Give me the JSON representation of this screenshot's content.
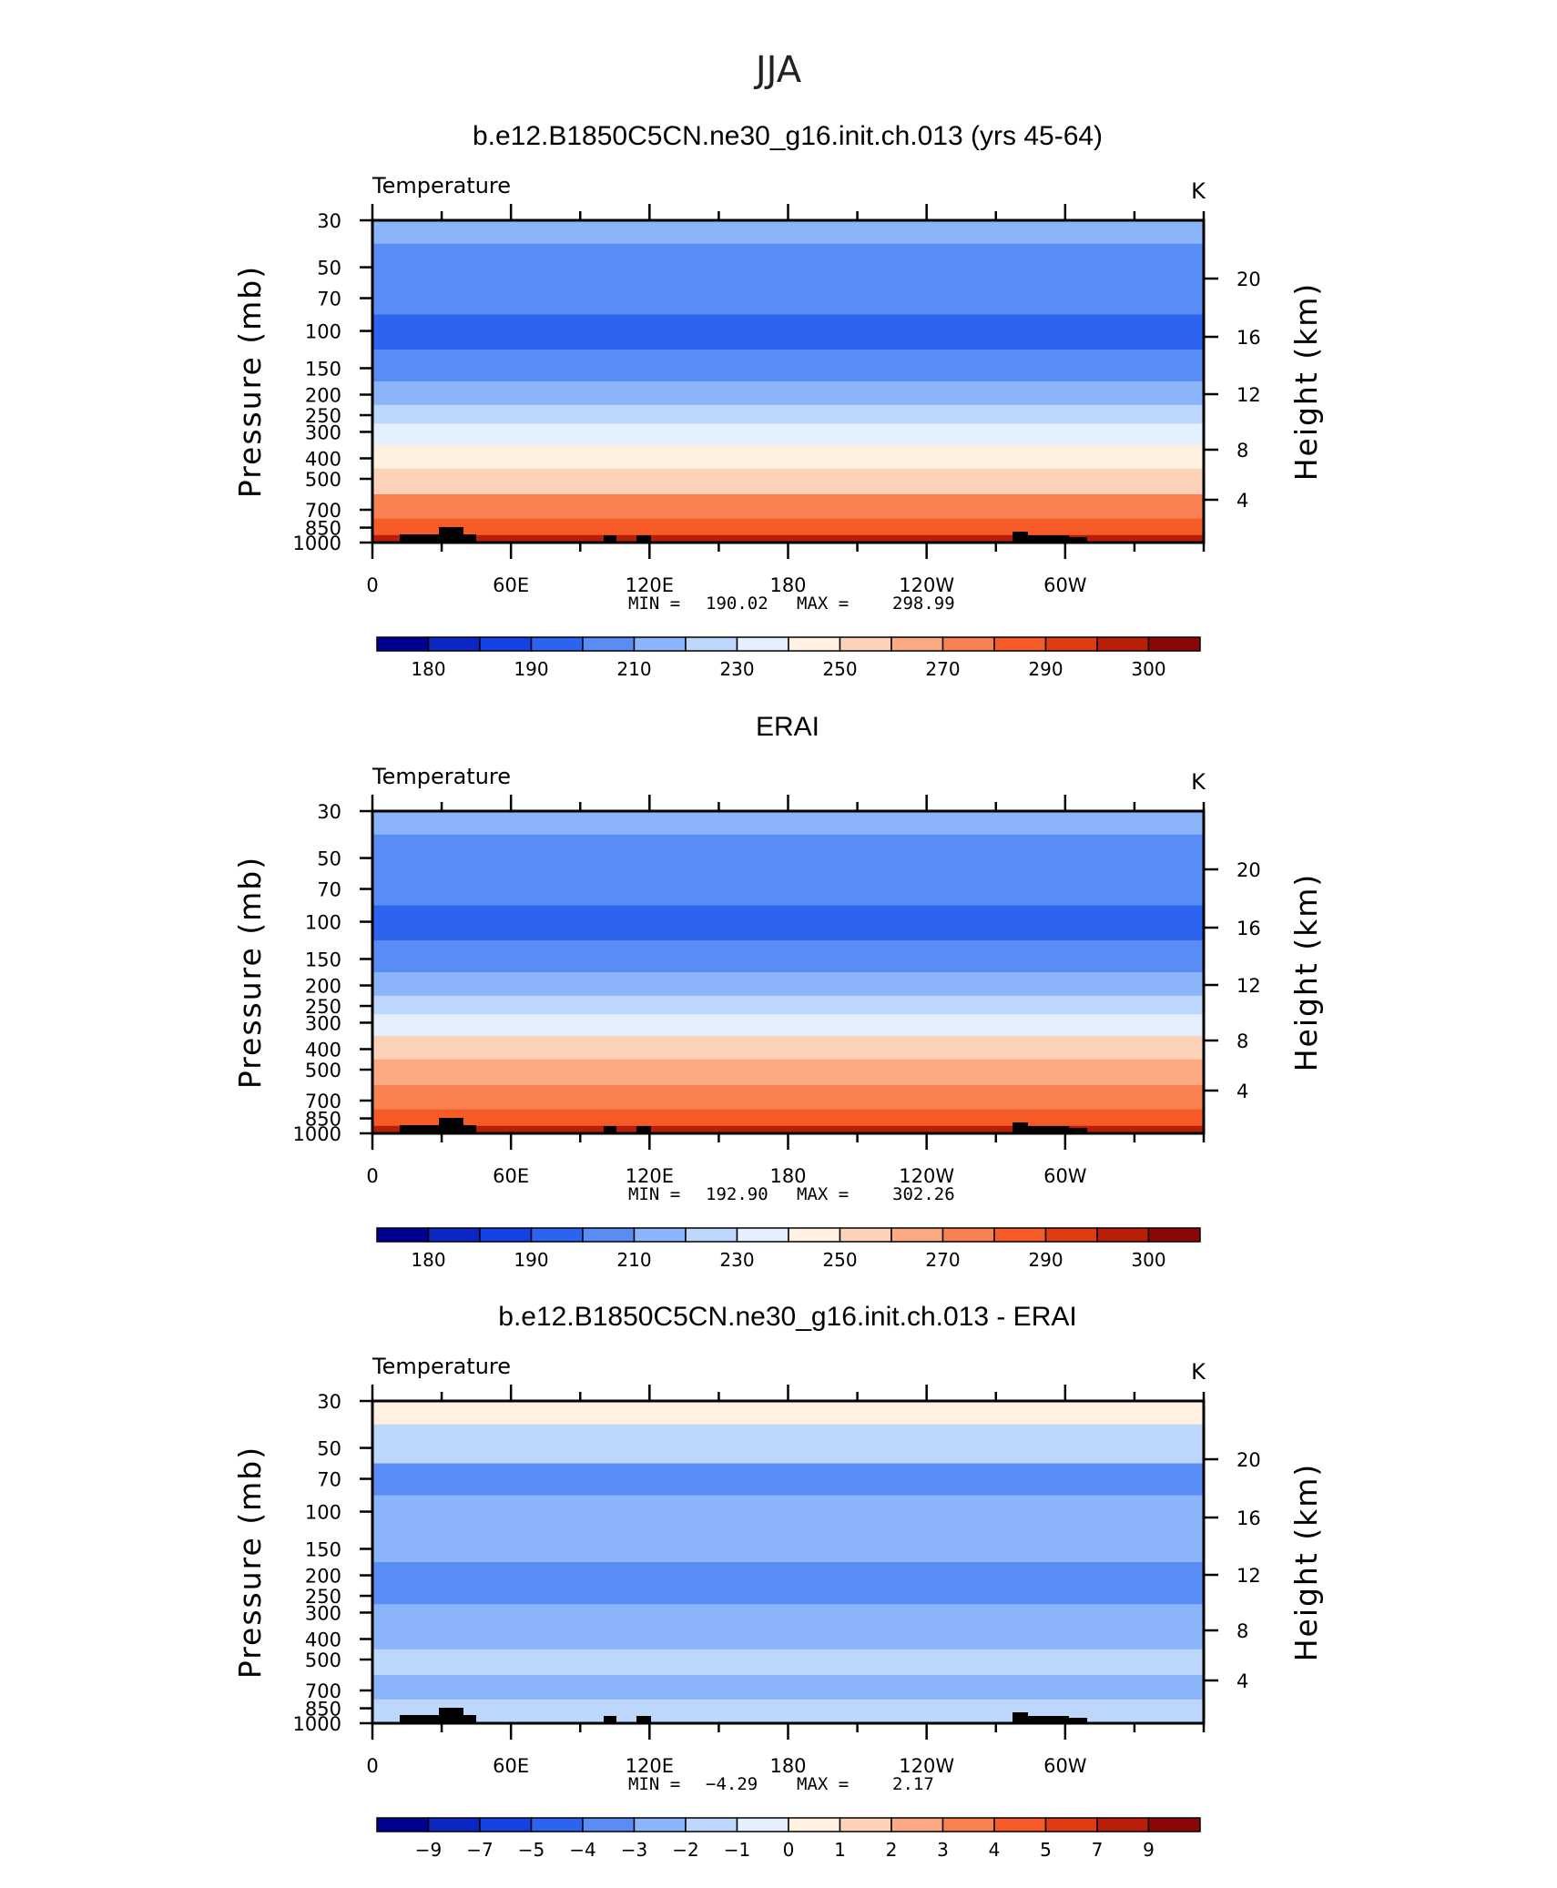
{
  "page_title": "JJA",
  "chart_data": [
    {
      "type": "heatmap",
      "title": "b.e12.B1850C5CN.ne30_g16.init.ch.013 (yrs 45-64)",
      "left_label": "Temperature",
      "right_label": "K",
      "ylabel": "Pressure (mb)",
      "ylabel_right": "Height (km)",
      "x_ticks": [
        "0",
        "60E",
        "120E",
        "180",
        "120W",
        "60W"
      ],
      "y_ticks": [
        "30",
        "50",
        "70",
        "100",
        "150",
        "200",
        "250",
        "300",
        "400",
        "500",
        "700",
        "850",
        "1000"
      ],
      "y_ticks_right": [
        "20",
        "16",
        "12",
        "8",
        "4"
      ],
      "min_label": "MIN =",
      "min_value": "190.02",
      "max_label": "MAX =",
      "max_value": "298.99",
      "colorbar_labels": [
        "180",
        "190",
        "210",
        "230",
        "250",
        "270",
        "290",
        "300"
      ],
      "colorbar_colors": [
        "#000090",
        "#0a27c4",
        "#1442e4",
        "#2c64f0",
        "#5a8cf5",
        "#8cb4fa",
        "#bcd6fc",
        "#e4f0fe",
        "#fff0e2",
        "#fdd2b8",
        "#fbaa84",
        "#f98050",
        "#f65a26",
        "#e03c12",
        "#b81e08",
        "#8c0808"
      ],
      "profile_levels": [
        {
          "level": 30,
          "value": 215
        },
        {
          "level": 50,
          "value": 208
        },
        {
          "level": 70,
          "value": 201
        },
        {
          "level": 100,
          "value": 196
        },
        {
          "level": 150,
          "value": 207
        },
        {
          "level": 200,
          "value": 216
        },
        {
          "level": 250,
          "value": 225
        },
        {
          "level": 300,
          "value": 234
        },
        {
          "level": 400,
          "value": 248
        },
        {
          "level": 500,
          "value": 259
        },
        {
          "level": 700,
          "value": 275
        },
        {
          "level": 850,
          "value": 285
        },
        {
          "level": 1000,
          "value": 295
        }
      ]
    },
    {
      "type": "heatmap",
      "title": "ERAI",
      "left_label": "Temperature",
      "right_label": "K",
      "ylabel": "Pressure (mb)",
      "ylabel_right": "Height (km)",
      "x_ticks": [
        "0",
        "60E",
        "120E",
        "180",
        "120W",
        "60W"
      ],
      "y_ticks": [
        "30",
        "50",
        "70",
        "100",
        "150",
        "200",
        "250",
        "300",
        "400",
        "500",
        "700",
        "850",
        "1000"
      ],
      "y_ticks_right": [
        "20",
        "16",
        "12",
        "8",
        "4"
      ],
      "min_label": "MIN =",
      "min_value": "192.90",
      "max_label": "MAX =",
      "max_value": "302.26",
      "colorbar_labels": [
        "180",
        "190",
        "210",
        "230",
        "250",
        "270",
        "290",
        "300"
      ],
      "colorbar_colors": [
        "#000090",
        "#0a27c4",
        "#1442e4",
        "#2c64f0",
        "#5a8cf5",
        "#8cb4fa",
        "#bcd6fc",
        "#e4f0fe",
        "#fff0e2",
        "#fdd2b8",
        "#fbaa84",
        "#f98050",
        "#f65a26",
        "#e03c12",
        "#b81e08",
        "#8c0808"
      ],
      "profile_levels": [
        {
          "level": 30,
          "value": 216
        },
        {
          "level": 50,
          "value": 209
        },
        {
          "level": 70,
          "value": 203
        },
        {
          "level": 100,
          "value": 198
        },
        {
          "level": 150,
          "value": 208
        },
        {
          "level": 200,
          "value": 217
        },
        {
          "level": 250,
          "value": 226
        },
        {
          "level": 300,
          "value": 236
        },
        {
          "level": 400,
          "value": 250
        },
        {
          "level": 500,
          "value": 261
        },
        {
          "level": 700,
          "value": 277
        },
        {
          "level": 850,
          "value": 287
        },
        {
          "level": 1000,
          "value": 296
        }
      ]
    },
    {
      "type": "heatmap",
      "title": "b.e12.B1850C5CN.ne30_g16.init.ch.013 - ERAI",
      "left_label": "Temperature",
      "right_label": "K",
      "ylabel": "Pressure (mb)",
      "ylabel_right": "Height (km)",
      "x_ticks": [
        "0",
        "60E",
        "120E",
        "180",
        "120W",
        "60W"
      ],
      "y_ticks": [
        "30",
        "50",
        "70",
        "100",
        "150",
        "200",
        "250",
        "300",
        "400",
        "500",
        "700",
        "850",
        "1000"
      ],
      "y_ticks_right": [
        "20",
        "16",
        "12",
        "8",
        "4"
      ],
      "min_label": "MIN =",
      "min_value": "−4.29",
      "max_label": "MAX =",
      "max_value": "2.17",
      "colorbar_labels": [
        "−9",
        "−7",
        "−5",
        "−4",
        "−3",
        "−2",
        "−1",
        "0",
        "1",
        "2",
        "3",
        "4",
        "5",
        "7",
        "9"
      ],
      "colorbar_colors": [
        "#000090",
        "#0a27c4",
        "#1442e4",
        "#2c64f0",
        "#5a8cf5",
        "#8cb4fa",
        "#bcd6fc",
        "#e4f0fe",
        "#fff0e2",
        "#fdd2b8",
        "#fbaa84",
        "#f98050",
        "#f65a26",
        "#e03c12",
        "#b81e08",
        "#8c0808"
      ],
      "profile_levels": [
        {
          "level": 30,
          "value": 0.5
        },
        {
          "level": 50,
          "value": -1.5
        },
        {
          "level": 70,
          "value": -3.5
        },
        {
          "level": 100,
          "value": -2.5
        },
        {
          "level": 150,
          "value": -2.6
        },
        {
          "level": 200,
          "value": -3.4
        },
        {
          "level": 250,
          "value": -3.1
        },
        {
          "level": 300,
          "value": -2.4
        },
        {
          "level": 400,
          "value": -2.1
        },
        {
          "level": 500,
          "value": -1.6
        },
        {
          "level": 700,
          "value": -2.2
        },
        {
          "level": 850,
          "value": -1.4
        },
        {
          "level": 1000,
          "value": -1.9
        }
      ]
    }
  ]
}
